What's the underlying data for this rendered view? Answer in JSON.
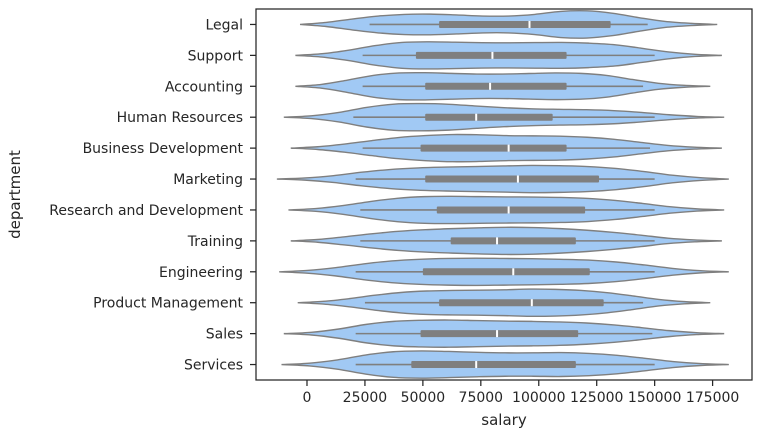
{
  "chart_data": {
    "type": "violin",
    "orientation": "horizontal",
    "xlabel": "salary",
    "ylabel": "department",
    "xlim": [
      -22000,
      192000
    ],
    "xticks": [
      0,
      25000,
      50000,
      75000,
      100000,
      125000,
      150000,
      175000
    ],
    "xtick_labels": [
      "0",
      "25000",
      "50000",
      "75000",
      "100000",
      "125000",
      "150000",
      "175000"
    ],
    "grid": false,
    "colors": {
      "fill": "#a1c9f4",
      "outline": "#7f7f7f",
      "box": "#7f7f7f",
      "median": "#ffffff",
      "axes": "#262626"
    },
    "categories": [
      "Legal",
      "Support",
      "Accounting",
      "Human Resources",
      "Business Development",
      "Marketing",
      "Research and Development",
      "Training",
      "Engineering",
      "Product Management",
      "Sales",
      "Services"
    ],
    "series": [
      {
        "category": "Legal",
        "min": -3000,
        "max": 177000,
        "whisker_low": 27000,
        "q1": 57000,
        "median": 96000,
        "q3": 131000,
        "whisker_high": 147000,
        "profile": [
          0,
          0.15,
          0.4,
          0.62,
          0.74,
          0.76,
          0.7,
          0.62,
          0.62,
          0.74,
          0.96,
          1.0,
          0.82,
          0.5,
          0.22,
          0.08,
          0
        ]
      },
      {
        "category": "Support",
        "min": -5000,
        "max": 179000,
        "whisker_low": 24000,
        "q1": 47000,
        "median": 80000,
        "q3": 112000,
        "whisker_high": 150000,
        "profile": [
          0,
          0.12,
          0.38,
          0.72,
          0.95,
          1.0,
          0.97,
          0.93,
          0.92,
          0.94,
          0.95,
          0.9,
          0.78,
          0.52,
          0.25,
          0.08,
          0
        ]
      },
      {
        "category": "Accounting",
        "min": -5000,
        "max": 174000,
        "whisker_low": 24000,
        "q1": 51000,
        "median": 79000,
        "q3": 112000,
        "whisker_high": 145000,
        "profile": [
          0,
          0.14,
          0.45,
          0.8,
          0.98,
          1.0,
          0.95,
          0.9,
          0.9,
          0.94,
          0.98,
          0.95,
          0.8,
          0.5,
          0.22,
          0.07,
          0
        ]
      },
      {
        "category": "Human Resources",
        "min": -10000,
        "max": 180000,
        "whisker_low": 20000,
        "q1": 51000,
        "median": 73000,
        "q3": 106000,
        "whisker_high": 150000,
        "profile": [
          0,
          0.1,
          0.35,
          0.72,
          0.96,
          1.0,
          0.95,
          0.82,
          0.7,
          0.62,
          0.58,
          0.55,
          0.48,
          0.35,
          0.18,
          0.06,
          0
        ]
      },
      {
        "category": "Business Development",
        "min": -7000,
        "max": 179000,
        "whisker_low": 24000,
        "q1": 49000,
        "median": 87000,
        "q3": 112000,
        "whisker_high": 148000,
        "profile": [
          0,
          0.1,
          0.3,
          0.55,
          0.78,
          0.92,
          1.0,
          0.98,
          0.92,
          0.9,
          0.88,
          0.8,
          0.65,
          0.42,
          0.2,
          0.07,
          0
        ]
      },
      {
        "category": "Marketing",
        "min": -13000,
        "max": 182000,
        "whisker_low": 21000,
        "q1": 51000,
        "median": 91000,
        "q3": 126000,
        "whisker_high": 150000,
        "profile": [
          0,
          0.08,
          0.25,
          0.5,
          0.7,
          0.82,
          0.88,
          0.92,
          0.96,
          1.0,
          0.98,
          0.92,
          0.78,
          0.55,
          0.28,
          0.1,
          0
        ]
      },
      {
        "category": "Research and Development",
        "min": -8000,
        "max": 180000,
        "whisker_low": 23000,
        "q1": 56000,
        "median": 87000,
        "q3": 120000,
        "whisker_high": 150000,
        "profile": [
          0,
          0.1,
          0.32,
          0.62,
          0.86,
          0.98,
          1.0,
          0.98,
          0.96,
          0.95,
          0.92,
          0.85,
          0.7,
          0.48,
          0.24,
          0.08,
          0
        ]
      },
      {
        "category": "Training",
        "min": -7000,
        "max": 179000,
        "whisker_low": 23000,
        "q1": 62000,
        "median": 82000,
        "q3": 116000,
        "whisker_high": 150000,
        "profile": [
          0,
          0.1,
          0.3,
          0.52,
          0.7,
          0.82,
          0.9,
          0.96,
          1.0,
          0.98,
          0.9,
          0.78,
          0.62,
          0.42,
          0.2,
          0.07,
          0
        ]
      },
      {
        "category": "Engineering",
        "min": -12000,
        "max": 182000,
        "whisker_low": 21000,
        "q1": 50000,
        "median": 89000,
        "q3": 122000,
        "whisker_high": 150000,
        "profile": [
          0,
          0.1,
          0.3,
          0.58,
          0.8,
          0.92,
          0.98,
          1.0,
          0.98,
          0.96,
          0.92,
          0.86,
          0.72,
          0.5,
          0.25,
          0.08,
          0
        ]
      },
      {
        "category": "Product Management",
        "min": -4000,
        "max": 174000,
        "whisker_low": 25000,
        "q1": 57000,
        "median": 97000,
        "q3": 128000,
        "whisker_high": 145000,
        "profile": [
          0,
          0.1,
          0.3,
          0.55,
          0.75,
          0.86,
          0.9,
          0.92,
          0.95,
          1.0,
          0.98,
          0.9,
          0.74,
          0.5,
          0.24,
          0.08,
          0
        ]
      },
      {
        "category": "Sales",
        "min": -10000,
        "max": 180000,
        "whisker_low": 21000,
        "q1": 49000,
        "median": 82000,
        "q3": 117000,
        "whisker_high": 149000,
        "profile": [
          0,
          0.1,
          0.34,
          0.68,
          0.9,
          0.98,
          1.0,
          0.96,
          0.92,
          0.9,
          0.86,
          0.78,
          0.64,
          0.44,
          0.22,
          0.07,
          0
        ]
      },
      {
        "category": "Services",
        "min": -11000,
        "max": 182000,
        "whisker_low": 21000,
        "q1": 45000,
        "median": 73000,
        "q3": 116000,
        "whisker_high": 150000,
        "profile": [
          0,
          0.1,
          0.34,
          0.7,
          0.94,
          1.0,
          0.96,
          0.9,
          0.86,
          0.86,
          0.88,
          0.82,
          0.68,
          0.46,
          0.22,
          0.07,
          0
        ]
      }
    ]
  }
}
